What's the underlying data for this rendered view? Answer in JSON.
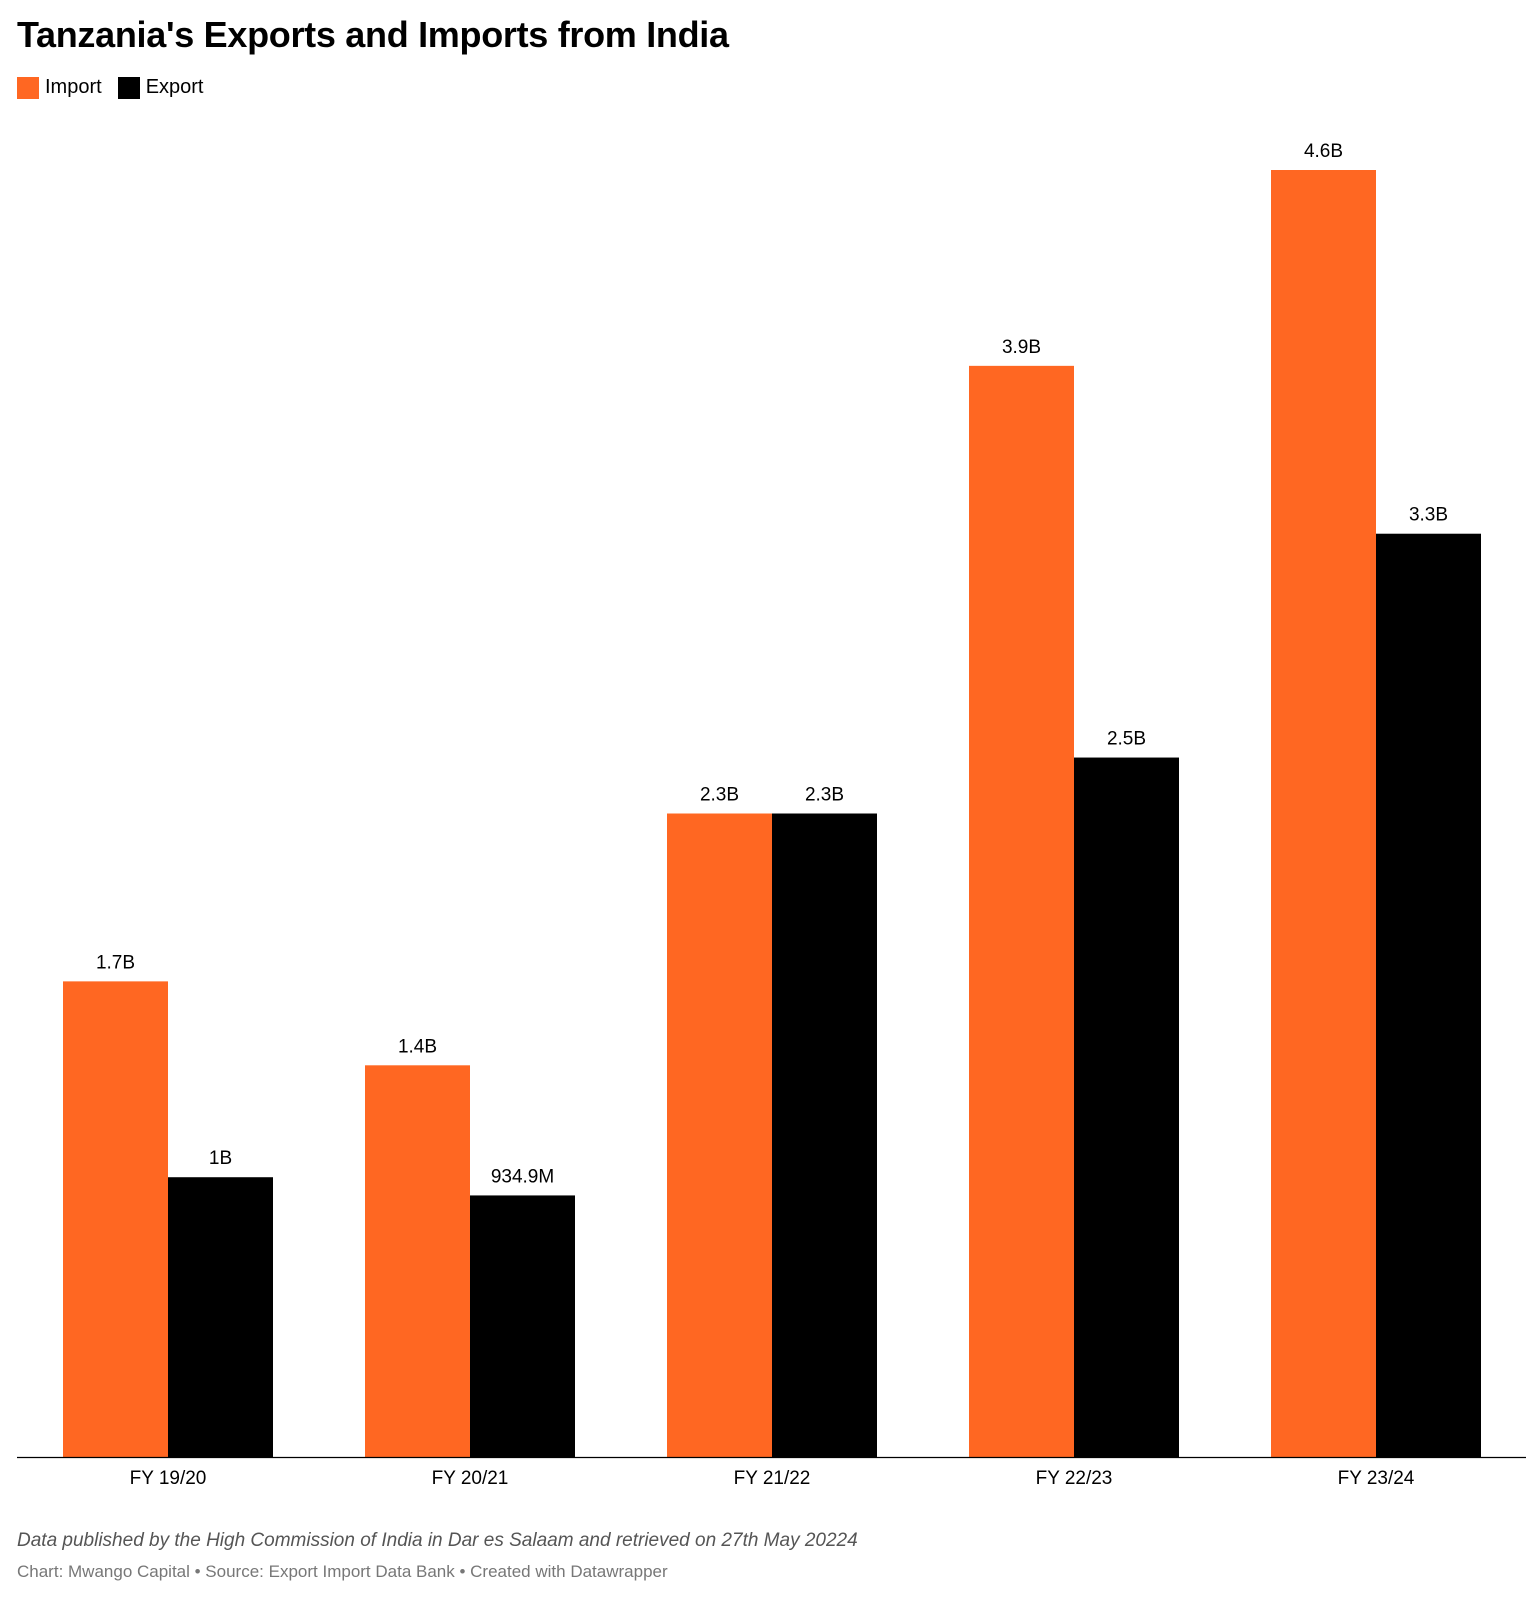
{
  "title": "Tanzania's Exports and Imports from India",
  "legend": {
    "items": [
      {
        "label": "Import",
        "color": "#ff6722"
      },
      {
        "label": "Export",
        "color": "#000000"
      }
    ]
  },
  "chart_data": {
    "type": "bar",
    "title": "Tanzania's Exports and Imports from India",
    "xlabel": "",
    "ylabel": "",
    "grid": false,
    "legend_position": "top-left",
    "categories": [
      "FY 19/20",
      "FY 20/21",
      "FY 21/22",
      "FY 22/23",
      "FY 23/24"
    ],
    "series": [
      {
        "name": "Import",
        "color": "#ff6722",
        "values": [
          1700000000,
          1400000000,
          2300000000,
          3900000000,
          4600000000
        ],
        "labels": [
          "1.7B",
          "1.4B",
          "2.3B",
          "3.9B",
          "4.6B"
        ]
      },
      {
        "name": "Export",
        "color": "#000000",
        "values": [
          1000000000,
          934900000,
          2300000000,
          2500000000,
          3300000000
        ],
        "labels": [
          "1B",
          "934.9M",
          "2.3B",
          "2.5B",
          "3.3B"
        ]
      }
    ],
    "ylim": [
      0,
      4600000000
    ]
  },
  "footer": {
    "notes": "Data published by the High Commission of India in Dar es Salaam and retrieved on 27th May 20224",
    "byline": "Chart: Mwango Capital • Source: Export Import Data Bank • Created with Datawrapper"
  }
}
